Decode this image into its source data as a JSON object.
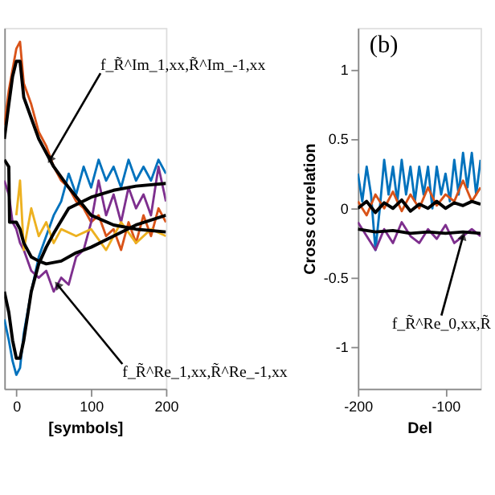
{
  "chart_data": [
    {
      "type": "line",
      "xlabel": "[symbols]",
      "xlim": [
        -16,
        200
      ],
      "xticks": [
        0,
        100,
        200
      ],
      "ylim": [
        -1.3,
        1.3
      ],
      "tick_labels": "x",
      "grid": false,
      "marker": "none",
      "line_style": "solid",
      "series": [
        {
          "color": "#d95319",
          "x": [
            -16,
            -10,
            -5,
            0,
            5,
            10,
            20,
            30,
            40,
            50,
            60,
            70,
            80,
            90,
            100,
            110,
            120,
            130,
            140,
            150,
            160,
            170,
            180,
            190,
            200
          ],
          "values": [
            0.6,
            0.85,
            1.0,
            1.15,
            1.2,
            0.9,
            0.75,
            0.55,
            0.45,
            0.3,
            0.2,
            0.15,
            0.05,
            0.0,
            -0.1,
            -0.05,
            -0.2,
            -0.15,
            -0.3,
            -0.1,
            -0.25,
            -0.05,
            -0.2,
            0.0,
            -0.1
          ]
        },
        {
          "color": "#0072bd",
          "x": [
            -16,
            -10,
            -5,
            0,
            5,
            10,
            20,
            30,
            40,
            50,
            60,
            70,
            80,
            90,
            100,
            110,
            120,
            130,
            140,
            150,
            160,
            170,
            180,
            190,
            200
          ],
          "values": [
            -0.8,
            -0.95,
            -1.1,
            -1.2,
            -1.15,
            -0.9,
            -0.6,
            -0.35,
            -0.2,
            -0.05,
            0.05,
            0.25,
            0.1,
            0.3,
            0.15,
            0.35,
            0.2,
            0.3,
            0.15,
            0.35,
            0.2,
            0.3,
            0.2,
            0.35,
            0.25
          ]
        },
        {
          "color": "#7e2f8e",
          "x": [
            -16,
            -10,
            -5,
            0,
            5,
            10,
            20,
            30,
            40,
            50,
            60,
            70,
            80,
            90,
            100,
            110,
            120,
            130,
            140,
            150,
            160,
            170,
            180,
            190,
            200
          ],
          "values": [
            0.2,
            0.1,
            -0.1,
            -0.15,
            -0.25,
            -0.3,
            -0.45,
            -0.5,
            -0.45,
            -0.6,
            -0.5,
            -0.55,
            -0.35,
            -0.3,
            -0.1,
            0.2,
            -0.05,
            0.1,
            -0.1,
            0.15,
            0.0,
            0.1,
            -0.05,
            0.3,
            0.05
          ]
        },
        {
          "color": "#edb120",
          "x": [
            0,
            5,
            10,
            20,
            30,
            40,
            50,
            60,
            80,
            100,
            120,
            140,
            160,
            180,
            200
          ],
          "values": [
            -0.05,
            0.2,
            -0.3,
            0.0,
            -0.2,
            -0.1,
            -0.25,
            -0.15,
            -0.2,
            -0.15,
            -0.3,
            -0.1,
            -0.25,
            -0.15,
            -0.2
          ]
        },
        {
          "color": "#000000",
          "x": [
            -16,
            -10,
            -5,
            0,
            5,
            10,
            20,
            30,
            40,
            50,
            70,
            100,
            130,
            160,
            200
          ],
          "values": [
            0.5,
            0.75,
            0.95,
            1.06,
            1.06,
            0.8,
            0.65,
            0.5,
            0.4,
            0.3,
            0.15,
            -0.05,
            -0.12,
            -0.15,
            -0.17
          ]
        },
        {
          "color": "#000000",
          "x": [
            -16,
            -10,
            -5,
            0,
            5,
            10,
            20,
            30,
            40,
            50,
            70,
            100,
            130,
            160,
            200
          ],
          "values": [
            -0.6,
            -0.75,
            -0.95,
            -1.08,
            -1.08,
            -0.95,
            -0.6,
            -0.4,
            -0.28,
            -0.18,
            0.0,
            0.08,
            0.13,
            0.16,
            0.18
          ]
        },
        {
          "color": "#000000",
          "x": [
            -16,
            -10,
            -9,
            0,
            5,
            10,
            20,
            30,
            40,
            60,
            80,
            100,
            130,
            160,
            200
          ],
          "values": [
            0.35,
            0.3,
            -0.1,
            -0.1,
            -0.15,
            -0.25,
            -0.35,
            -0.38,
            -0.4,
            -0.38,
            -0.32,
            -0.28,
            -0.2,
            -0.12,
            -0.05
          ]
        }
      ],
      "annotations": [
        {
          "text": "f_R̃^Im_1,xx,R̃^Im_-1,xx",
          "x": 45,
          "y": 0.35
        },
        {
          "text": "f_R̃^Re_1,xx,R̃^Re_-1,xx",
          "x": 55,
          "y": -0.55
        }
      ]
    },
    {
      "type": "line",
      "xlabel": "Del",
      "ylabel": "Cross correlation",
      "xlim": [
        -200,
        -60
      ],
      "xticks": [
        -200,
        -100
      ],
      "ylim": [
        -1.3,
        1.3
      ],
      "yticks": [
        -1,
        -0.5,
        0,
        0.5,
        1
      ],
      "grid": false,
      "marker": "none",
      "line_style": "solid",
      "series": [
        {
          "color": "#0072bd",
          "x": [
            -200,
            -195,
            -190,
            -185,
            -180,
            -175,
            -170,
            -165,
            -160,
            -155,
            -150,
            -145,
            -140,
            -135,
            -130,
            -125,
            -120,
            -115,
            -110,
            -105,
            -100,
            -95,
            -90,
            -85,
            -80,
            -75,
            -70,
            -65,
            -60
          ],
          "values": [
            0.25,
            0.05,
            0.3,
            0.1,
            -0.3,
            0.0,
            0.35,
            0.1,
            0.3,
            0.05,
            0.35,
            0.1,
            0.3,
            0.05,
            0.3,
            0.1,
            0.3,
            0.0,
            0.3,
            0.1,
            0.25,
            0.05,
            0.35,
            0.1,
            0.4,
            0.15,
            0.4,
            0.1,
            0.35
          ]
        },
        {
          "color": "#d95319",
          "x": [
            -200,
            -190,
            -180,
            -170,
            -160,
            -150,
            -140,
            -130,
            -120,
            -110,
            -100,
            -90,
            -80,
            -70,
            -60
          ],
          "values": [
            0.05,
            -0.05,
            0.1,
            0.0,
            0.12,
            -0.02,
            0.1,
            0.0,
            0.15,
            0.02,
            0.1,
            0.05,
            0.2,
            0.05,
            0.15
          ]
        },
        {
          "color": "#7e2f8e",
          "x": [
            -200,
            -190,
            -180,
            -170,
            -160,
            -150,
            -140,
            -130,
            -120,
            -110,
            -100,
            -90,
            -80,
            -70,
            -60
          ],
          "values": [
            -0.1,
            -0.2,
            -0.3,
            -0.15,
            -0.25,
            -0.1,
            -0.2,
            -0.25,
            -0.15,
            -0.22,
            -0.12,
            -0.25,
            -0.2,
            -0.15,
            -0.2
          ]
        },
        {
          "color": "#000000",
          "x": [
            -200,
            -190,
            -180,
            -170,
            -160,
            -150,
            -140,
            -130,
            -120,
            -110,
            -100,
            -90,
            -80,
            -70,
            -60
          ],
          "values": [
            0.0,
            0.05,
            -0.03,
            0.04,
            0.0,
            0.06,
            -0.02,
            0.03,
            0.0,
            0.05,
            0.0,
            0.04,
            0.02,
            0.05,
            0.03
          ]
        },
        {
          "color": "#000000",
          "x": [
            -200,
            -180,
            -160,
            -140,
            -120,
            -100,
            -80,
            -60
          ],
          "values": [
            -0.15,
            -0.17,
            -0.16,
            -0.18,
            -0.17,
            -0.18,
            -0.17,
            -0.18
          ]
        }
      ],
      "annotations": [
        "(b)",
        {
          "text": "f_R̃^Re_0,xx,R̃",
          "x": -80,
          "y": -0.2
        }
      ]
    }
  ]
}
